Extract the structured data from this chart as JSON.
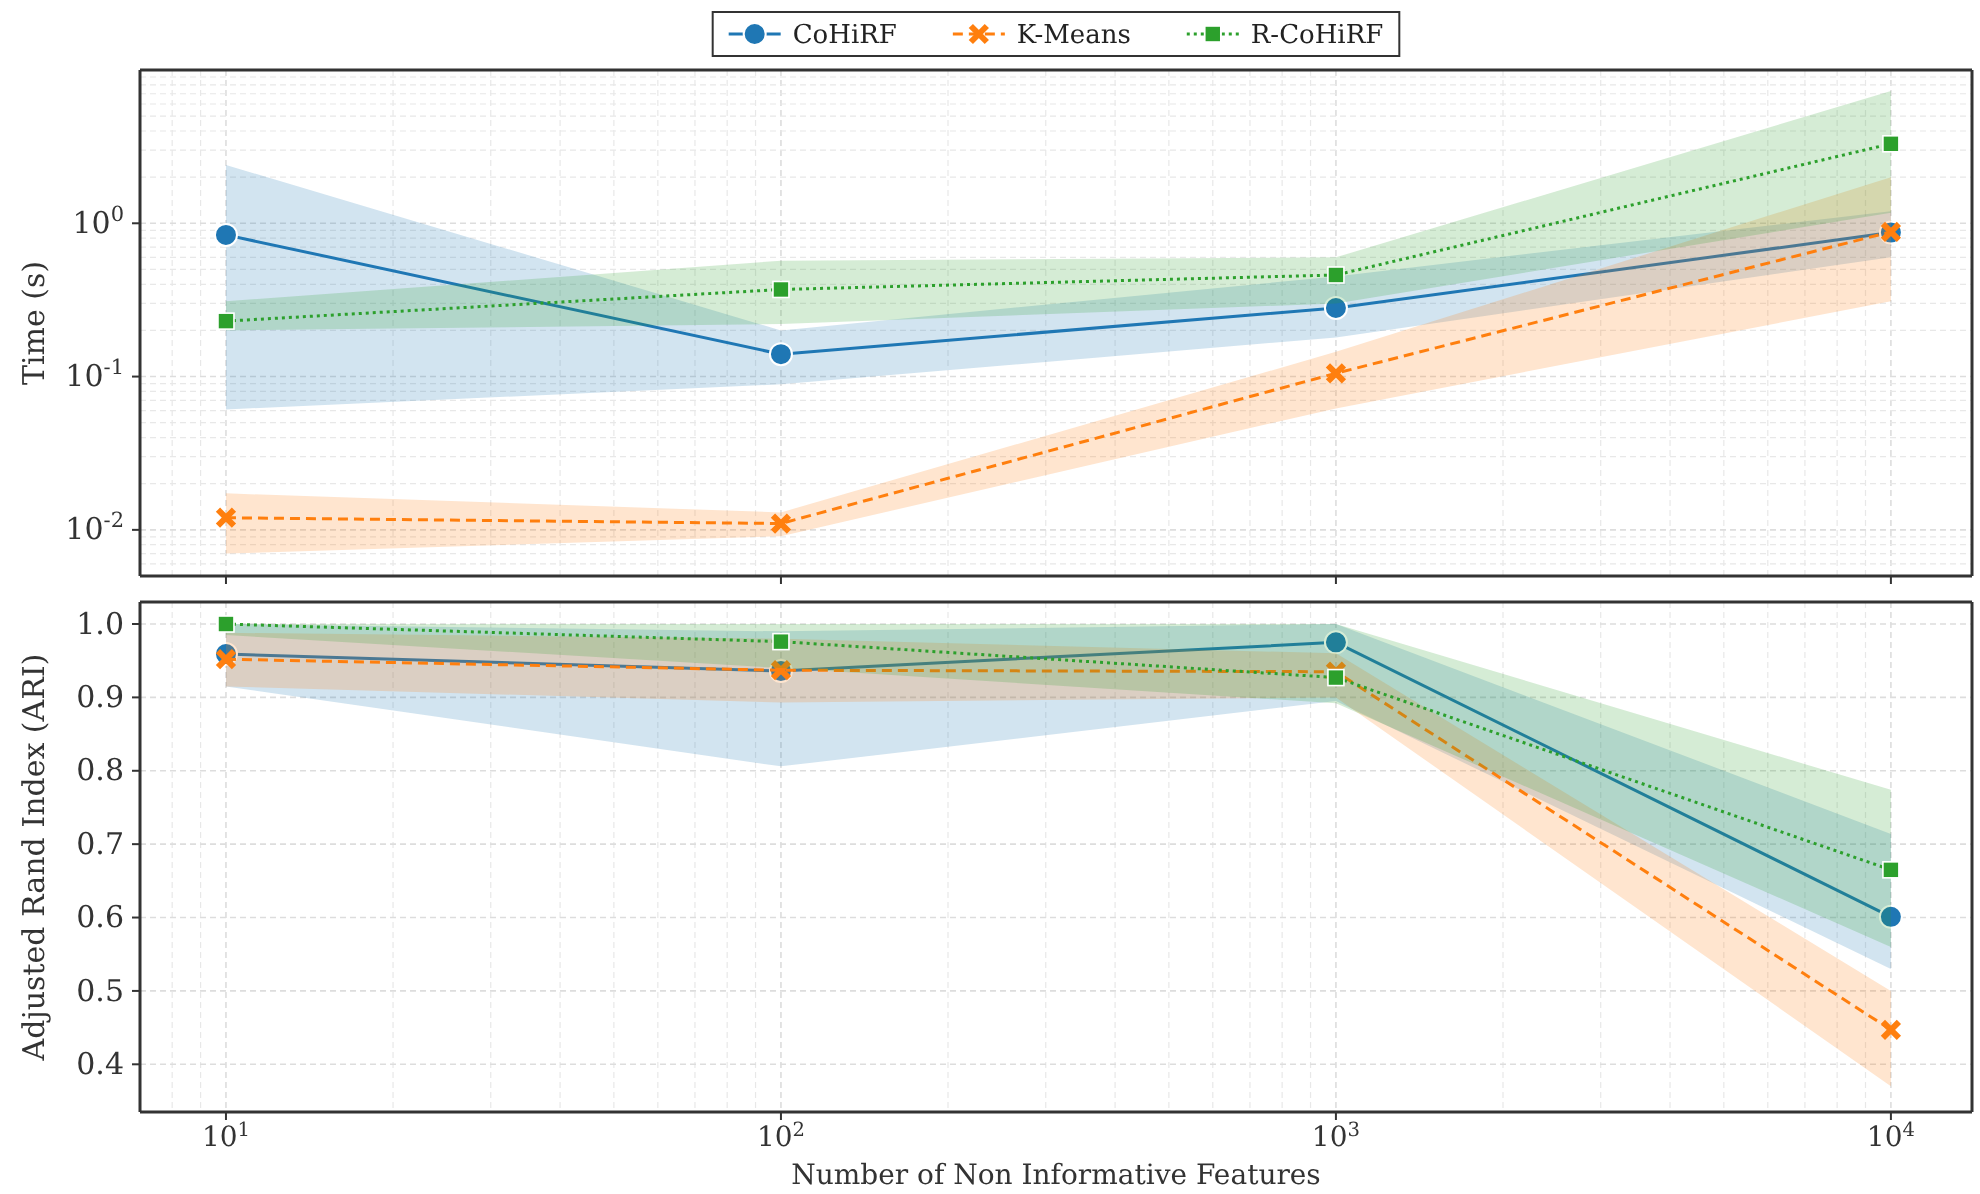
{
  "chart_data": [
    {
      "type": "line",
      "ylabel": "Time (s)",
      "log": "xy",
      "grid": true,
      "legend": "top",
      "tick_labels": "y",
      "x": [
        10,
        100,
        1000,
        10000
      ],
      "xlim": [
        7,
        14000
      ],
      "xticks": [
        {
          "value": 10,
          "label": null
        },
        {
          "value": 100,
          "label": null
        },
        {
          "value": 1000,
          "label": null
        },
        {
          "value": 10000,
          "label": null
        }
      ],
      "ylim": [
        0.005,
        10
      ],
      "yticks": [
        {
          "value": 0.01,
          "label": "10$^{-2}$"
        },
        {
          "value": 0.1,
          "label": "10$^{-1}$"
        },
        {
          "value": 1,
          "label": "10$^{0}$"
        }
      ],
      "series": [
        {
          "name": "CoHiRF",
          "color": "#1f77b4",
          "marker": "circle",
          "line_style": "solid",
          "values": [
            0.84,
            0.14,
            0.28,
            0.87
          ],
          "lower": [
            0.061,
            0.089,
            0.18,
            0.6
          ],
          "upper": [
            2.4,
            0.2,
            0.45,
            1.2
          ]
        },
        {
          "name": "K-Means",
          "color": "#ff7f0e",
          "marker": "cross",
          "line_style": "dashed",
          "values": [
            0.012,
            0.011,
            0.105,
            0.88
          ],
          "lower": [
            0.007,
            0.0091,
            0.062,
            0.31
          ],
          "upper": [
            0.0173,
            0.013,
            0.145,
            2.0
          ]
        },
        {
          "name": "R-CoHiRF",
          "color": "#2ca02c",
          "marker": "square",
          "line_style": "dotted",
          "values": [
            0.23,
            0.37,
            0.46,
            3.3
          ],
          "lower": [
            0.2,
            0.22,
            0.3,
            1.17
          ],
          "upper": [
            0.31,
            0.57,
            0.6,
            7.3
          ]
        }
      ]
    },
    {
      "type": "line",
      "ylabel": "Adjusted Rand Index (ARI)",
      "xlabel": "Number of Non Informative Features",
      "log": "x",
      "grid": true,
      "x": [
        10,
        100,
        1000,
        10000
      ],
      "xlim": [
        7,
        14000
      ],
      "xticks": [
        {
          "value": 10,
          "label": "10$^{1}$"
        },
        {
          "value": 100,
          "label": "10$^{2}$"
        },
        {
          "value": 1000,
          "label": "10$^{3}$"
        },
        {
          "value": 10000,
          "label": "10$^{4}$"
        }
      ],
      "ylim": [
        0.335,
        1.03
      ],
      "yticks": [
        0.4,
        0.5,
        0.6,
        0.7,
        0.8,
        0.9,
        {
          "value": 1,
          "label": "1.0"
        }
      ],
      "series": [
        {
          "color": "#1f77b4",
          "marker": "circle",
          "line_style": "solid",
          "values": [
            0.959,
            0.936,
            0.975,
            0.601
          ],
          "lower": [
            0.915,
            0.806,
            0.895,
            0.53
          ],
          "upper": [
            1.0,
            0.99,
            1.0,
            0.714
          ]
        },
        {
          "color": "#ff7f0e",
          "marker": "cross",
          "line_style": "dashed",
          "values": [
            0.952,
            0.937,
            0.935,
            0.447
          ],
          "lower": [
            0.915,
            0.893,
            0.9,
            0.37
          ],
          "upper": [
            0.988,
            0.98,
            0.96,
            0.5
          ]
        },
        {
          "color": "#2ca02c",
          "marker": "square",
          "line_style": "dotted",
          "values": [
            1.0,
            0.976,
            0.927,
            0.665
          ],
          "lower": [
            0.985,
            0.94,
            0.892,
            0.56
          ],
          "upper": [
            1.0,
            1.0,
            1.0,
            0.774
          ]
        }
      ]
    }
  ]
}
